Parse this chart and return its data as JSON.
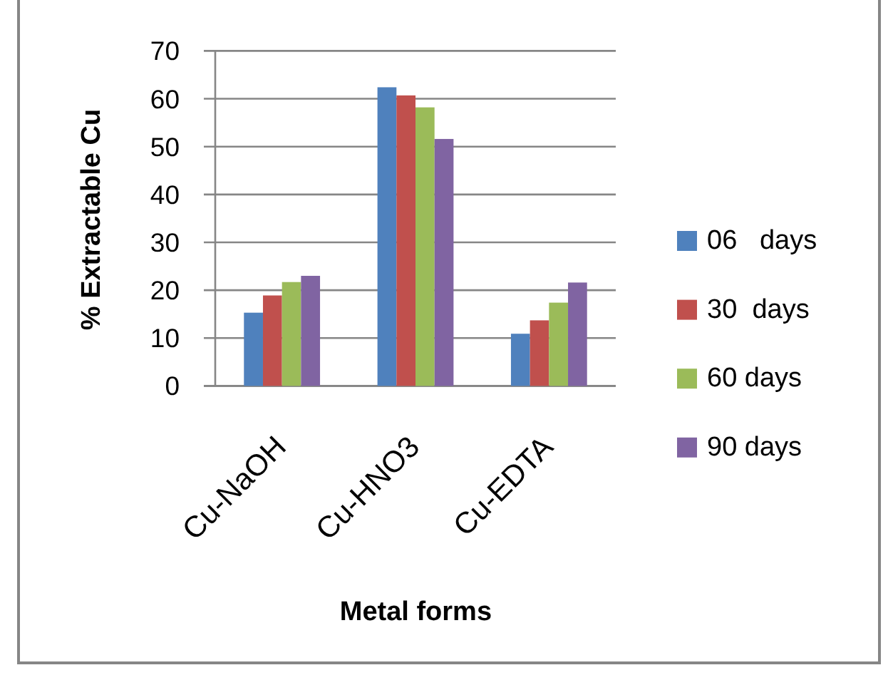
{
  "chart_data": {
    "type": "bar",
    "xlabel": "Metal forms",
    "ylabel": "% Extractable Cu",
    "categories": [
      "Cu-NaOH",
      "Cu-HNO3",
      "Cu-EDTA"
    ],
    "series": [
      {
        "name": "06   days",
        "color": "#4f81bd",
        "values": [
          15.3,
          62.4,
          10.9
        ]
      },
      {
        "name": "30  days",
        "color": "#c0504d",
        "values": [
          18.9,
          60.7,
          13.7
        ]
      },
      {
        "name": "60 days",
        "color": "#9bbb59",
        "values": [
          21.7,
          58.2,
          17.4
        ]
      },
      {
        "name": "90 days",
        "color": "#8064a2",
        "values": [
          23.0,
          51.6,
          21.6
        ]
      }
    ],
    "ylim": [
      0,
      70
    ],
    "yticks": [
      0,
      10,
      20,
      30,
      40,
      50,
      60,
      70
    ],
    "grid": "y",
    "legend": "right"
  }
}
